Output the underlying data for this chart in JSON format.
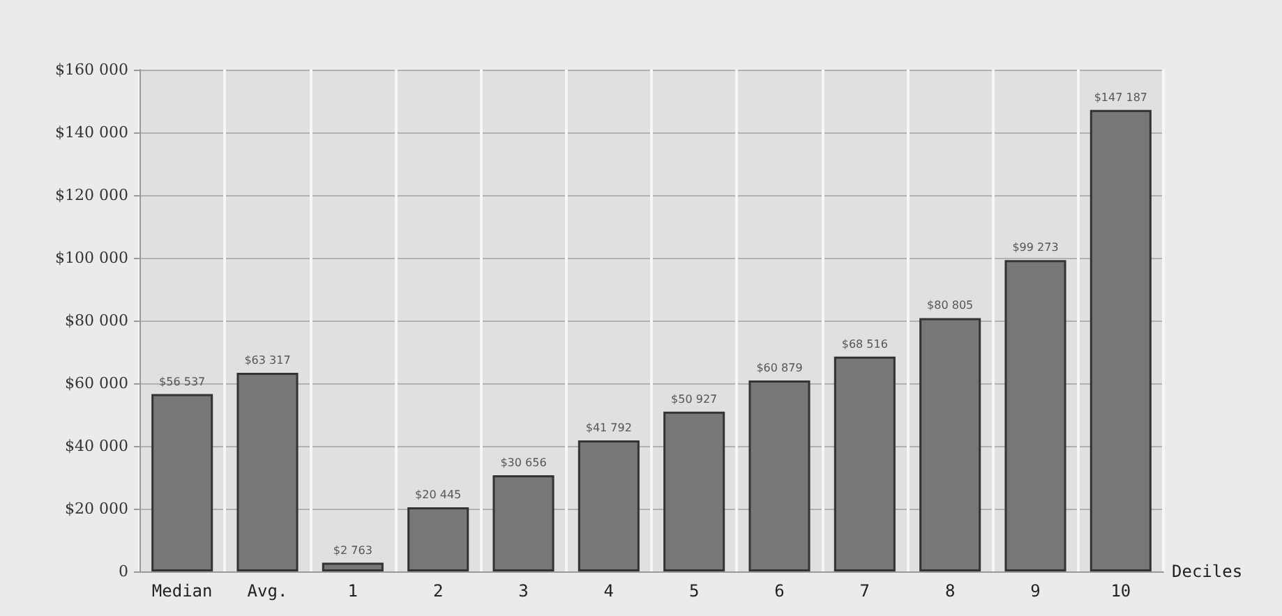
{
  "chart_data": {
    "type": "bar",
    "xlabel": "Deciles",
    "categories": [
      "Median",
      "Avg.",
      "1",
      "2",
      "3",
      "4",
      "5",
      "6",
      "7",
      "8",
      "9",
      "10"
    ],
    "values": [
      56537,
      63317,
      2763,
      20445,
      30656,
      41792,
      50927,
      60879,
      68516,
      80805,
      99273,
      147187
    ],
    "value_labels": [
      "$56 537",
      "$63 317",
      "$2 763",
      "$20 445",
      "$30 656",
      "$41 792",
      "$50 927",
      "$60 879",
      "$68 516",
      "$80 805",
      "$99 273",
      "$147 187"
    ],
    "color": "#777777",
    "ylim": [
      0,
      160000
    ],
    "yticks": [
      {
        "value": 0,
        "label": "0"
      },
      {
        "value": 20000,
        "label": "$20 000"
      },
      {
        "value": 40000,
        "label": "$40 000"
      },
      {
        "value": 60000,
        "label": "$60 000"
      },
      {
        "value": 80000,
        "label": "$80 000"
      },
      {
        "value": 100000,
        "label": "$100 000"
      },
      {
        "value": 120000,
        "label": "$120 000"
      },
      {
        "value": 140000,
        "label": "$140 000"
      },
      {
        "value": 160000,
        "label": "$160 000"
      }
    ],
    "grid": true
  }
}
